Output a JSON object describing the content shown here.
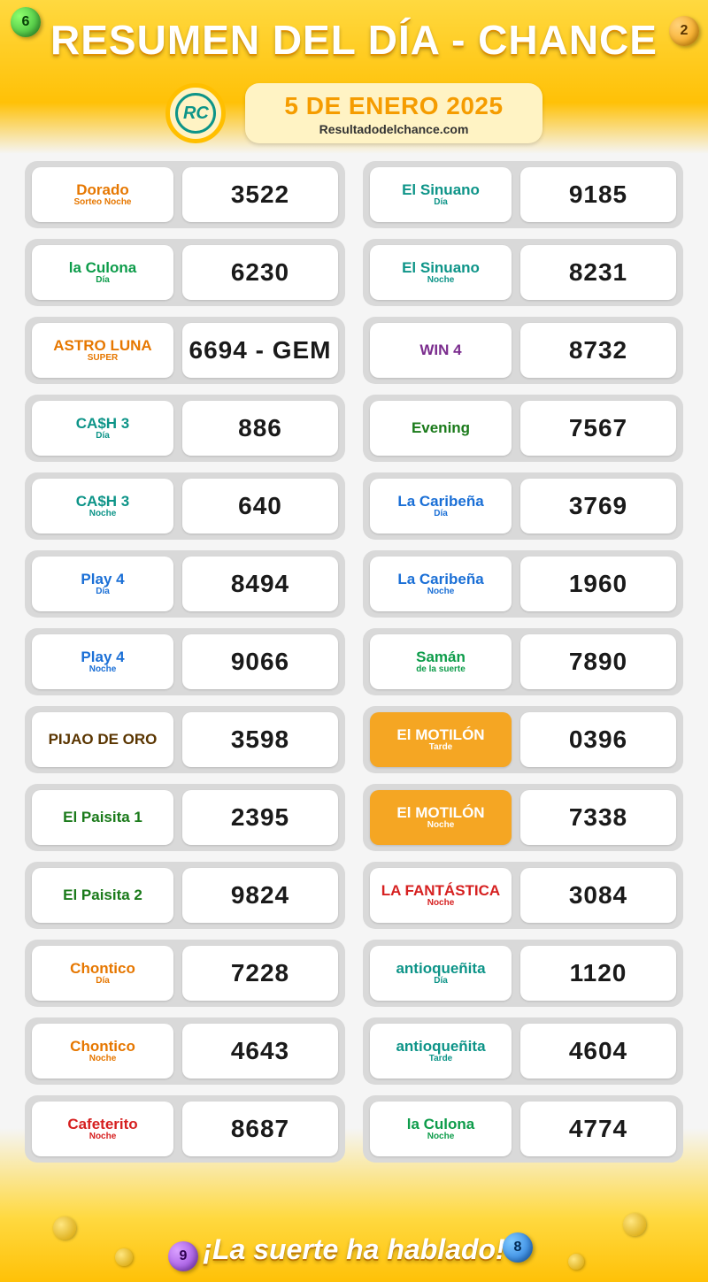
{
  "header": {
    "title": "RESUMEN DEL DÍA  -  CHANCE",
    "date": "5 DE ENERO 2025",
    "website": "Resultadodelchance.com",
    "badge": "RC"
  },
  "footer": {
    "slogan": "¡La suerte ha hablado!"
  },
  "balls": {
    "tl": "6",
    "tr": "2",
    "bl": "9",
    "br": "8"
  },
  "left": [
    {
      "logo_main": "Dorado",
      "logo_sub": "Sorteo Noche",
      "theme": "c-orange",
      "result": "3522"
    },
    {
      "logo_main": "la Culona",
      "logo_sub": "Día",
      "theme": "c-green",
      "result": "6230"
    },
    {
      "logo_main": "ASTRO LUNA",
      "logo_sub": "SUPER",
      "theme": "c-orange",
      "result": "6694 - GEM"
    },
    {
      "logo_main": "CA$H 3",
      "logo_sub": "Día",
      "theme": "c-teal",
      "result": "886"
    },
    {
      "logo_main": "CA$H 3",
      "logo_sub": "Noche",
      "theme": "c-teal",
      "result": "640"
    },
    {
      "logo_main": "Play 4",
      "logo_sub": "Día",
      "theme": "c-blue",
      "result": "8494"
    },
    {
      "logo_main": "Play 4",
      "logo_sub": "Noche",
      "theme": "c-blue",
      "result": "9066"
    },
    {
      "logo_main": "PIJAO DE ORO",
      "logo_sub": "",
      "theme": "c-brown",
      "result": "3598"
    },
    {
      "logo_main": "El Paisita 1",
      "logo_sub": "",
      "theme": "c-darkgreen",
      "result": "2395"
    },
    {
      "logo_main": "El Paisita 2",
      "logo_sub": "",
      "theme": "c-darkgreen",
      "result": "9824"
    },
    {
      "logo_main": "Chontico",
      "logo_sub": "Día",
      "theme": "c-orange",
      "result": "7228"
    },
    {
      "logo_main": "Chontico",
      "logo_sub": "Noche",
      "theme": "c-orange",
      "result": "4643"
    },
    {
      "logo_main": "Cafeterito",
      "logo_sub": "Noche",
      "theme": "c-red",
      "result": "8687"
    }
  ],
  "right": [
    {
      "logo_main": "El Sinuano",
      "logo_sub": "Día",
      "theme": "c-teal",
      "result": "9185"
    },
    {
      "logo_main": "El Sinuano",
      "logo_sub": "Noche",
      "theme": "c-teal",
      "result": "8231"
    },
    {
      "logo_main": "WIN 4",
      "logo_sub": "",
      "theme": "c-purple",
      "result": "8732"
    },
    {
      "logo_main": "Evening",
      "logo_sub": "",
      "theme": "c-darkgreen",
      "result": "7567"
    },
    {
      "logo_main": "La Caribeña",
      "logo_sub": "Día",
      "theme": "c-blue",
      "result": "3769"
    },
    {
      "logo_main": "La Caribeña",
      "logo_sub": "Noche",
      "theme": "c-blue",
      "result": "1960"
    },
    {
      "logo_main": "Samán",
      "logo_sub": "de la suerte",
      "theme": "c-green",
      "result": "7890"
    },
    {
      "logo_main": "El MOTILÓN",
      "logo_sub": "Tarde",
      "theme": "c-yellow",
      "result": "0396"
    },
    {
      "logo_main": "El MOTILÓN",
      "logo_sub": "Noche",
      "theme": "c-yellow",
      "result": "7338"
    },
    {
      "logo_main": "LA FANTÁSTICA",
      "logo_sub": "Noche",
      "theme": "c-red",
      "result": "3084"
    },
    {
      "logo_main": "antioqueñita",
      "logo_sub": "Día",
      "theme": "c-teal",
      "result": "1120"
    },
    {
      "logo_main": "antioqueñita",
      "logo_sub": "Tarde",
      "theme": "c-teal",
      "result": "4604"
    },
    {
      "logo_main": "la Culona",
      "logo_sub": "Noche",
      "theme": "c-green",
      "result": "4774"
    }
  ]
}
